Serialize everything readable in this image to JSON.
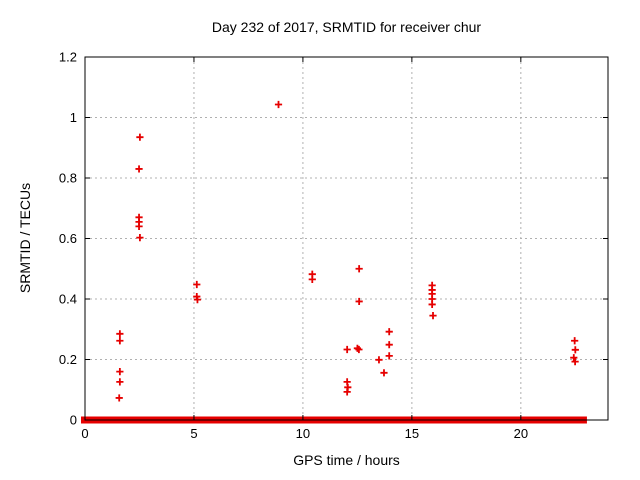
{
  "chart_data": {
    "type": "scatter",
    "title": "Day 232 of 2017, SRMTID for receiver chur",
    "xlabel": "GPS time / hours",
    "ylabel": "SRMTID / TECUs",
    "xlim": [
      0,
      24
    ],
    "ylim": [
      0,
      1.2
    ],
    "xticks": [
      0,
      5,
      10,
      15,
      20
    ],
    "xtick_labels": [
      "0",
      "5",
      "10",
      "15",
      "20"
    ],
    "yticks": [
      0,
      0.2,
      0.4,
      0.6,
      0.8,
      1,
      1.2
    ],
    "ytick_labels": [
      "0",
      "0.2",
      "0.4",
      "0.6",
      "0.8",
      "1",
      "1.2"
    ],
    "grid": "dotted",
    "legend": "none",
    "marker": "plus",
    "series": [
      {
        "name": "SRMTID",
        "points": [
          [
            1.6,
            0.285
          ],
          [
            1.6,
            0.262
          ],
          [
            1.6,
            0.16
          ],
          [
            1.6,
            0.126
          ],
          [
            1.57,
            0.073
          ],
          [
            2.52,
            0.935
          ],
          [
            2.48,
            0.83
          ],
          [
            2.48,
            0.67
          ],
          [
            2.48,
            0.655
          ],
          [
            2.48,
            0.64
          ],
          [
            2.52,
            0.603
          ],
          [
            5.13,
            0.448
          ],
          [
            5.13,
            0.408
          ],
          [
            5.16,
            0.398
          ],
          [
            8.88,
            1.043
          ],
          [
            10.43,
            0.482
          ],
          [
            10.43,
            0.465
          ],
          [
            12.58,
            0.5
          ],
          [
            12.58,
            0.392
          ],
          [
            12.03,
            0.233
          ],
          [
            12.5,
            0.237
          ],
          [
            12.57,
            0.233
          ],
          [
            12.03,
            0.126
          ],
          [
            12.06,
            0.108
          ],
          [
            12.03,
            0.093
          ],
          [
            13.49,
            0.199
          ],
          [
            13.72,
            0.156
          ],
          [
            13.96,
            0.292
          ],
          [
            13.96,
            0.249
          ],
          [
            13.96,
            0.212
          ],
          [
            15.93,
            0.445
          ],
          [
            15.93,
            0.43
          ],
          [
            15.93,
            0.417
          ],
          [
            15.93,
            0.4
          ],
          [
            15.93,
            0.382
          ],
          [
            15.97,
            0.345
          ],
          [
            22.47,
            0.262
          ],
          [
            22.5,
            0.232
          ],
          [
            22.43,
            0.206
          ],
          [
            22.49,
            0.193
          ]
        ]
      }
    ],
    "zero_line": {
      "y": 0,
      "x_start": 0,
      "x_end": 22.85
    }
  },
  "colors": {
    "background": "#ffffff",
    "marker": "#e60000",
    "border": "#000000",
    "grid": "#b0b0b0",
    "text": "#000000"
  }
}
